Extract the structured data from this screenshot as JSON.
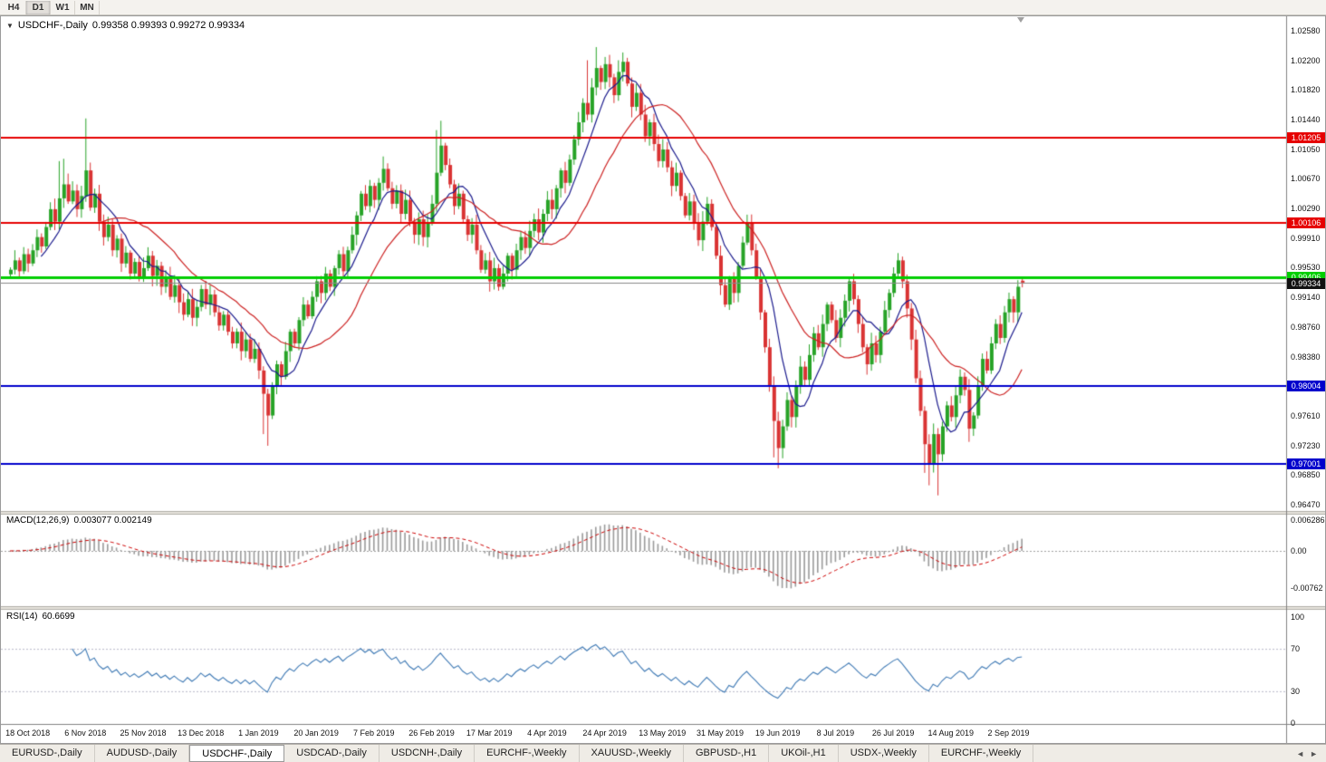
{
  "toolbar": {
    "periods": [
      {
        "label": "H4",
        "active": false
      },
      {
        "label": "D1",
        "active": true
      },
      {
        "label": "W1",
        "active": false
      },
      {
        "label": "MN",
        "active": false
      }
    ]
  },
  "chart": {
    "collapse_icon": "▼",
    "title": "USDCHF-,Daily",
    "ohlc": "0.99358 0.99393 0.99272 0.99334"
  },
  "chart_data": {
    "type": "candlestick",
    "symbol": "USDCHF",
    "timeframe": "Daily",
    "title": "USDCHF-,Daily",
    "current": {
      "open": 0.99358,
      "high": 0.99393,
      "low": 0.99272,
      "close": 0.99334
    },
    "ylim": [
      0.9647,
      1.0258
    ],
    "x_labels": [
      "18 Oct 2018",
      "6 Nov 2018",
      "25 Nov 2018",
      "13 Dec 2018",
      "1 Jan 2019",
      "20 Jan 2019",
      "7 Feb 2019",
      "26 Feb 2019",
      "17 Mar 2019",
      "4 Apr 2019",
      "24 Apr 2019",
      "13 May 2019",
      "31 May 2019",
      "19 Jun 2019",
      "8 Jul 2019",
      "26 Jul 2019",
      "14 Aug 2019",
      "2 Sep 2019"
    ],
    "x_label_indices": [
      4,
      17,
      30,
      43,
      56,
      69,
      82,
      95,
      108,
      121,
      134,
      147,
      160,
      173,
      186,
      199,
      212,
      225
    ],
    "closes": [
      0.995,
      0.9962,
      0.9948,
      0.997,
      0.9958,
      0.9975,
      0.9992,
      0.998,
      1.0005,
      1.0028,
      1.0012,
      1.0042,
      1.006,
      1.0038,
      1.0052,
      1.0028,
      1.0045,
      1.0078,
      1.003,
      1.0048,
      1.0012,
      0.9992,
      1.0008,
      0.9975,
      0.999,
      0.9958,
      0.9972,
      0.9945,
      0.996,
      0.9938,
      0.9952,
      0.9968,
      0.9942,
      0.9955,
      0.9928,
      0.994,
      0.9915,
      0.993,
      0.9908,
      0.9892,
      0.9912,
      0.9888,
      0.9902,
      0.9925,
      0.9905,
      0.9918,
      0.9895,
      0.9878,
      0.9892,
      0.987,
      0.9855,
      0.987,
      0.9845,
      0.986,
      0.9835,
      0.9848,
      0.982,
      0.979,
      0.9762,
      0.98,
      0.9828,
      0.9812,
      0.9845,
      0.987,
      0.9855,
      0.9885,
      0.9905,
      0.989,
      0.9915,
      0.9935,
      0.992,
      0.9945,
      0.9928,
      0.9952,
      0.997,
      0.9948,
      0.9975,
      0.9995,
      1.002,
      1.0048,
      1.0032,
      1.0058,
      1.004,
      1.0062,
      1.008,
      1.0055,
      1.0035,
      1.0052,
      1.0022,
      1.004,
      1.0012,
      0.9995,
      1.0015,
      0.9992,
      1.001,
      1.0035,
      1.0075,
      1.011,
      1.0085,
      1.006,
      1.0032,
      1.0048,
      1.0015,
      0.9995,
      1.0008,
      0.9975,
      0.995,
      0.9962,
      0.9935,
      0.9952,
      0.9928,
      0.9945,
      0.9968,
      0.995,
      0.9975,
      0.9992,
      0.9978,
      1.0,
      1.0015,
      0.9998,
      1.0022,
      1.004,
      1.0028,
      1.0055,
      1.0078,
      1.0062,
      1.0092,
      1.0118,
      1.014,
      1.0165,
      1.015,
      1.0185,
      1.021,
      1.0192,
      1.0215,
      1.0198,
      1.0175,
      1.0205,
      1.0218,
      1.019,
      1.016,
      1.0178,
      1.015,
      1.0122,
      1.014,
      1.0112,
      1.009,
      1.0105,
      1.0082,
      1.0058,
      1.0075,
      1.0045,
      1.002,
      1.0038,
      1.001,
      0.9988,
      1.0012,
      1.0035,
      1.0005,
      0.9968,
      0.993,
      0.9905,
      0.9938,
      0.992,
      0.9955,
      0.9985,
      1.001,
      0.9975,
      0.994,
      0.9895,
      0.985,
      0.98,
      0.9755,
      0.972,
      0.9748,
      0.9782,
      0.976,
      0.98,
      0.9825,
      0.9808,
      0.984,
      0.9868,
      0.985,
      0.988,
      0.9905,
      0.9885,
      0.9862,
      0.9888,
      0.991,
      0.9935,
      0.9912,
      0.988,
      0.985,
      0.9828,
      0.9855,
      0.984,
      0.987,
      0.9898,
      0.992,
      0.9945,
      0.9962,
      0.9935,
      0.99,
      0.986,
      0.981,
      0.9768,
      0.9725,
      0.97,
      0.9738,
      0.9712,
      0.9748,
      0.9775,
      0.976,
      0.9788,
      0.9812,
      0.9795,
      0.9745,
      0.9762,
      0.98,
      0.9835,
      0.982,
      0.9855,
      0.988,
      0.9862,
      0.9895,
      0.9912,
      0.9895,
      0.9928,
      0.99334
    ],
    "wick_overrides": {
      "11": {
        "h": 1.009
      },
      "12": {
        "h": 1.0093
      },
      "17": {
        "h": 1.0145
      },
      "57": {
        "l": 0.9738
      },
      "58": {
        "l": 0.9723
      },
      "84": {
        "h": 1.0096
      },
      "96": {
        "h": 1.013
      },
      "97": {
        "h": 1.0142
      },
      "130": {
        "h": 1.022
      },
      "132": {
        "h": 1.0237
      },
      "137": {
        "h": 1.022
      },
      "172": {
        "l": 0.9708
      },
      "173": {
        "l": 0.9694
      },
      "206": {
        "l": 0.9688
      },
      "207": {
        "l": 0.9672
      },
      "209": {
        "l": 0.9659
      },
      "216": {
        "l": 0.9728
      },
      "228": {
        "o": 0.99358,
        "h": 0.99393,
        "l": 0.99272
      }
    },
    "price_axis": {
      "ticks": [
        "1.02580",
        "1.02200",
        "1.01820",
        "1.01440",
        "1.01050",
        "1.00670",
        "1.00290",
        "0.99910",
        "0.99530",
        "0.99140",
        "0.98760",
        "0.98380",
        "0.97610",
        "0.97230",
        "0.96850",
        "0.96470"
      ]
    },
    "hlines": [
      {
        "value": 1.01205,
        "label": "1.01205",
        "color": "#e60000",
        "width": 2
      },
      {
        "value": 1.00106,
        "label": "1.00106",
        "color": "#e60000",
        "width": 2
      },
      {
        "value": 0.99406,
        "label": "0.99406",
        "color": "#00ce00",
        "width": 3
      },
      {
        "value": 0.98004,
        "label": "0.98004",
        "color": "#0000cc",
        "width": 2
      },
      {
        "value": 0.97001,
        "label": "0.97001",
        "color": "#0000cc",
        "width": 2
      }
    ],
    "bid_line": {
      "value": 0.99334,
      "label": "0.99334",
      "line_color": "#8a8a8a",
      "box_color": "#111111"
    },
    "ma": [
      {
        "name": "MA fast",
        "period": 8
      },
      {
        "name": "MA slow",
        "period": 21
      }
    ],
    "macd": {
      "label": "MACD(12,26,9)",
      "values_text": "0.003077 0.002149",
      "fast": 12,
      "slow": 26,
      "signal_period": 9,
      "axis": [
        "0.006286",
        "0.00",
        "-0.00762"
      ],
      "axis_values": [
        0.006286,
        0,
        -0.00762
      ]
    },
    "rsi": {
      "label": "RSI(14)",
      "value_text": "60.6699",
      "period": 14,
      "levels": [
        70,
        30
      ],
      "axis": [
        "100",
        "70",
        "30",
        "0"
      ],
      "axis_values": [
        100,
        70,
        30,
        0
      ]
    },
    "colors": {
      "bull": "#27a327",
      "bear": "#d93333",
      "ma_fast": "#1a1a8c",
      "ma_slow": "#cc2222",
      "macd_hist": "#9a9a9a",
      "macd_signal": "#cc0000",
      "rsi": "#3e79b4"
    }
  },
  "tabs": {
    "items": [
      "EURUSD-,Daily",
      "AUDUSD-,Daily",
      "USDCHF-,Daily",
      "USDCAD-,Daily",
      "USDCNH-,Daily",
      "EURCHF-,Weekly",
      "XAUUSD-,Weekly",
      "GBPUSD-,H1",
      "UKOil-,H1",
      "USDX-,Weekly",
      "EURCHF-,Weekly"
    ],
    "active_index": 2,
    "left_arrow": "◄",
    "right_arrow": "►"
  }
}
